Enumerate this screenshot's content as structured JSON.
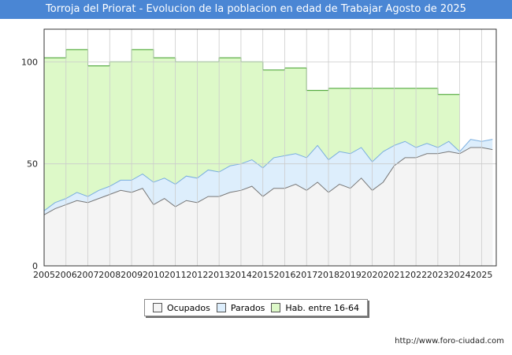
{
  "title": "Torroja del Priorat - Evolucion de la poblacion en edad de Trabajar Agosto de 2025",
  "watermark": "FORO-CIUDAD.COM",
  "footer_url": "http://www.foro-ciudad.com",
  "colors": {
    "title_bg": "#4a86d4",
    "hab_fill": "#ddf9c8",
    "hab_line": "#3e9e28",
    "hab_border": "#3e9e28",
    "parados_fill": "#ddeefc",
    "parados_line": "#7aaedf",
    "ocupados_fill": "#f4f4f4",
    "ocupados_line": "#777777"
  },
  "legend": {
    "ocupados": "Ocupados",
    "parados": "Parados",
    "hab": "Hab. entre 16-64"
  },
  "chart_data": {
    "type": "area",
    "title": "Torroja del Priorat - Evolucion de la poblacion en edad de Trabajar Agosto de 2025",
    "xlabel": "",
    "ylabel": "",
    "xlim": [
      2005,
      2025.67
    ],
    "ylim": [
      0,
      116
    ],
    "yticks": [
      0,
      50,
      100
    ],
    "xticks": [
      "2005",
      "2006",
      "2007",
      "2008",
      "2009",
      "2010",
      "2011",
      "2012",
      "2013",
      "2014",
      "2015",
      "2016",
      "2017",
      "2018",
      "2019",
      "2020",
      "2021",
      "2022",
      "2023",
      "2024",
      "2025"
    ],
    "grid": true,
    "legend_position": "bottom",
    "series": [
      {
        "name": "Hab. entre 16-64",
        "x": [
          2005,
          2006,
          2007,
          2008,
          2009,
          2010,
          2011,
          2012,
          2013,
          2014,
          2015,
          2016,
          2017,
          2018,
          2019,
          2020,
          2021,
          2022,
          2023,
          2024
        ],
        "values": [
          102,
          106,
          98,
          100,
          106,
          102,
          100,
          100,
          102,
          100,
          96,
          97,
          86,
          87,
          87,
          87,
          87,
          87,
          84,
          null
        ]
      },
      {
        "name": "Parados",
        "x": [
          2005.0,
          2005.5,
          2006.0,
          2006.5,
          2007.0,
          2007.5,
          2008.0,
          2008.5,
          2009.0,
          2009.5,
          2010.0,
          2010.5,
          2011.0,
          2011.5,
          2012.0,
          2012.5,
          2013.0,
          2013.5,
          2014.0,
          2014.5,
          2015.0,
          2015.5,
          2016.0,
          2016.5,
          2017.0,
          2017.5,
          2018.0,
          2018.5,
          2019.0,
          2019.5,
          2020.0,
          2020.5,
          2021.0,
          2021.5,
          2022.0,
          2022.5,
          2023.0,
          2023.5,
          2024.0,
          2024.5,
          2025.0,
          2025.5
        ],
        "values": [
          27,
          31,
          33,
          36,
          34,
          37,
          39,
          42,
          42,
          45,
          41,
          43,
          40,
          44,
          43,
          47,
          46,
          49,
          50,
          52,
          48,
          53,
          54,
          55,
          53,
          59,
          52,
          56,
          55,
          58,
          51,
          56,
          59,
          61,
          58,
          60,
          58,
          61,
          56,
          62,
          61,
          62
        ]
      },
      {
        "name": "Ocupados",
        "x": [
          2005.0,
          2005.5,
          2006.0,
          2006.5,
          2007.0,
          2007.5,
          2008.0,
          2008.5,
          2009.0,
          2009.5,
          2010.0,
          2010.5,
          2011.0,
          2011.5,
          2012.0,
          2012.5,
          2013.0,
          2013.5,
          2014.0,
          2014.5,
          2015.0,
          2015.5,
          2016.0,
          2016.5,
          2017.0,
          2017.5,
          2018.0,
          2018.5,
          2019.0,
          2019.5,
          2020.0,
          2020.5,
          2021.0,
          2021.5,
          2022.0,
          2022.5,
          2023.0,
          2023.5,
          2024.0,
          2024.5,
          2025.0,
          2025.5
        ],
        "values": [
          25,
          28,
          30,
          32,
          31,
          33,
          35,
          37,
          36,
          38,
          30,
          33,
          29,
          32,
          31,
          34,
          34,
          36,
          37,
          39,
          34,
          38,
          38,
          40,
          37,
          41,
          36,
          40,
          38,
          43,
          37,
          41,
          49,
          53,
          53,
          55,
          55,
          56,
          55,
          58,
          58,
          57
        ]
      }
    ]
  }
}
